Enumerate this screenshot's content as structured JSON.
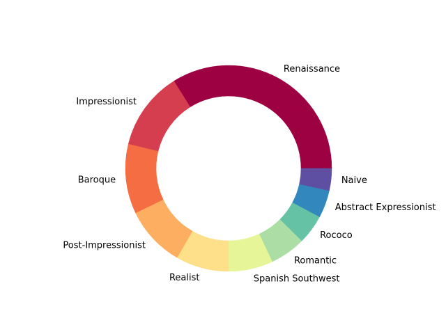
{
  "chart_data": {
    "type": "pie",
    "donut": true,
    "start_angle_deg": 0,
    "direction": "counterclockwise",
    "categories": [
      "Renaissance",
      "Impressionist",
      "Baroque",
      "Post-Impressionist",
      "Realist",
      "Spanish Southwest",
      "Romantic",
      "Rococo",
      "Abstract Expressionist",
      "Naive"
    ],
    "values": [
      32.2,
      11.7,
      10.4,
      9.1,
      7.9,
      6.6,
      5.3,
      4.4,
      4.1,
      3.3
    ],
    "colors": [
      "#9e0142",
      "#d53e4f",
      "#f46d43",
      "#fdae61",
      "#fee08b",
      "#e6f598",
      "#abdda4",
      "#66c2a5",
      "#3288bd",
      "#5e4fa2"
    ]
  }
}
